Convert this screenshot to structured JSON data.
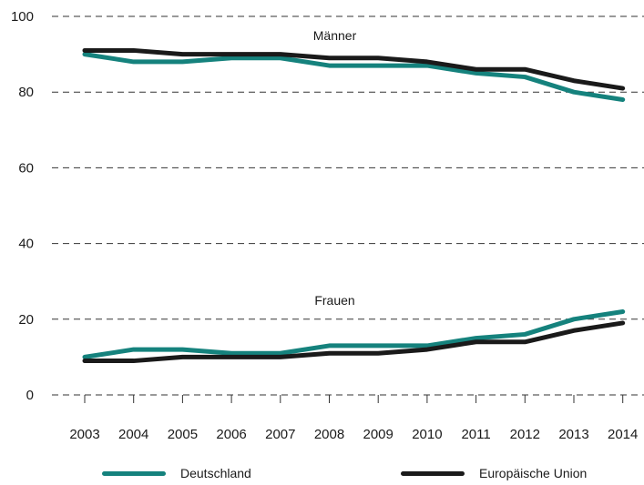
{
  "chart_data": {
    "type": "line",
    "categories": [
      "2003",
      "2004",
      "2005",
      "2006",
      "2007",
      "2008",
      "2009",
      "2010",
      "2011",
      "2012",
      "2013",
      "2014"
    ],
    "ylim": [
      0,
      100
    ],
    "yticks": [
      0,
      20,
      40,
      60,
      80,
      100
    ],
    "grid": true,
    "legend_position": "bottom",
    "annotations": [
      {
        "text": "Männer",
        "x": "2008",
        "y": 95
      },
      {
        "text": "Frauen",
        "x": "2008",
        "y": 25
      }
    ],
    "series": [
      {
        "name": "Deutschland",
        "group": "Männer",
        "color": "#15827d",
        "values": [
          90,
          88,
          88,
          89,
          89,
          87,
          87,
          87,
          85,
          84,
          80,
          78
        ]
      },
      {
        "name": "Europäische Union",
        "group": "Männer",
        "color": "#1a1a1a",
        "values": [
          91,
          91,
          90,
          90,
          90,
          89,
          89,
          88,
          86,
          86,
          83,
          81
        ]
      },
      {
        "name": "Deutschland",
        "group": "Frauen",
        "color": "#15827d",
        "values": [
          10,
          12,
          12,
          11,
          11,
          13,
          13,
          13,
          15,
          16,
          20,
          22
        ]
      },
      {
        "name": "Europäische Union",
        "group": "Frauen",
        "color": "#1a1a1a",
        "values": [
          9,
          9,
          10,
          10,
          10,
          11,
          11,
          12,
          14,
          14,
          17,
          19
        ]
      }
    ],
    "legend": [
      {
        "name": "Deutschland",
        "color": "#15827d"
      },
      {
        "name": "Europäische Union",
        "color": "#1a1a1a"
      }
    ]
  }
}
